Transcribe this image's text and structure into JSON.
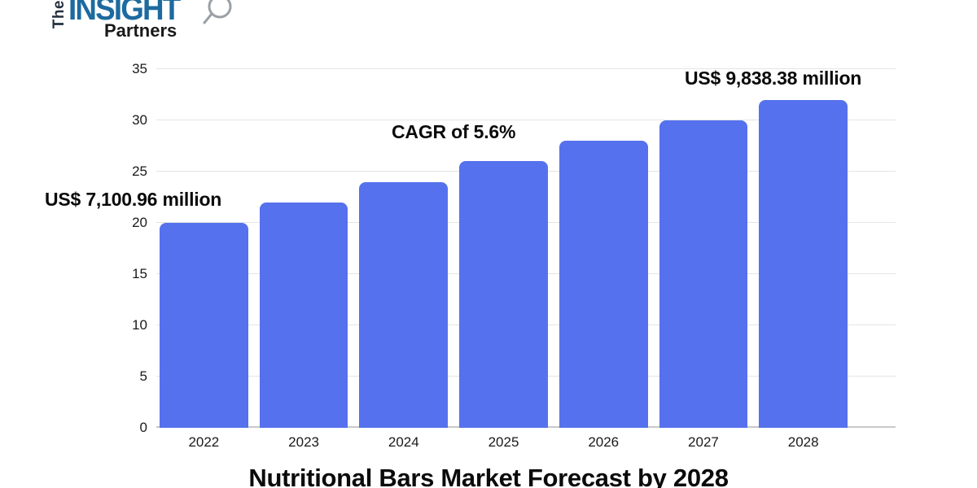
{
  "logo": {
    "the": "The",
    "insight": "INSIGHT",
    "partners": "Partners"
  },
  "annotations": {
    "start_value": "US$ 7,100.96 million",
    "cagr": "CAGR of 5.6%",
    "end_value": "US$ 9,838.38 million"
  },
  "chart_data": {
    "type": "bar",
    "title": "Nutritional Bars Market Forecast by 2028",
    "categories": [
      "2022",
      "2023",
      "2024",
      "2025",
      "2026",
      "2027",
      "2028"
    ],
    "values": [
      20,
      22,
      24,
      26,
      28,
      30,
      32
    ],
    "ylim": [
      0,
      35
    ],
    "yticks": [
      0,
      5,
      10,
      15,
      20,
      25,
      30,
      35
    ],
    "xlabel": "",
    "ylabel": "",
    "grid": true,
    "legend_position": "none",
    "annotations": [
      {
        "text": "US$ 7,100.96 million",
        "near": "2022"
      },
      {
        "text": "CAGR of 5.6%",
        "near": "2025"
      },
      {
        "text": "US$ 9,838.38 million",
        "near": "2028"
      }
    ],
    "labeled_market_values_million_usd": {
      "2022": 7100.96,
      "2028": 9838.38
    },
    "cagr_percent": 5.6
  },
  "colors": {
    "bar": "#5571ed",
    "gridline": "#e4e4e4",
    "baseline": "#c9c9c9",
    "insight_blue": "#1d6a9f",
    "logo_dark": "#22303e",
    "text": "#111111"
  }
}
